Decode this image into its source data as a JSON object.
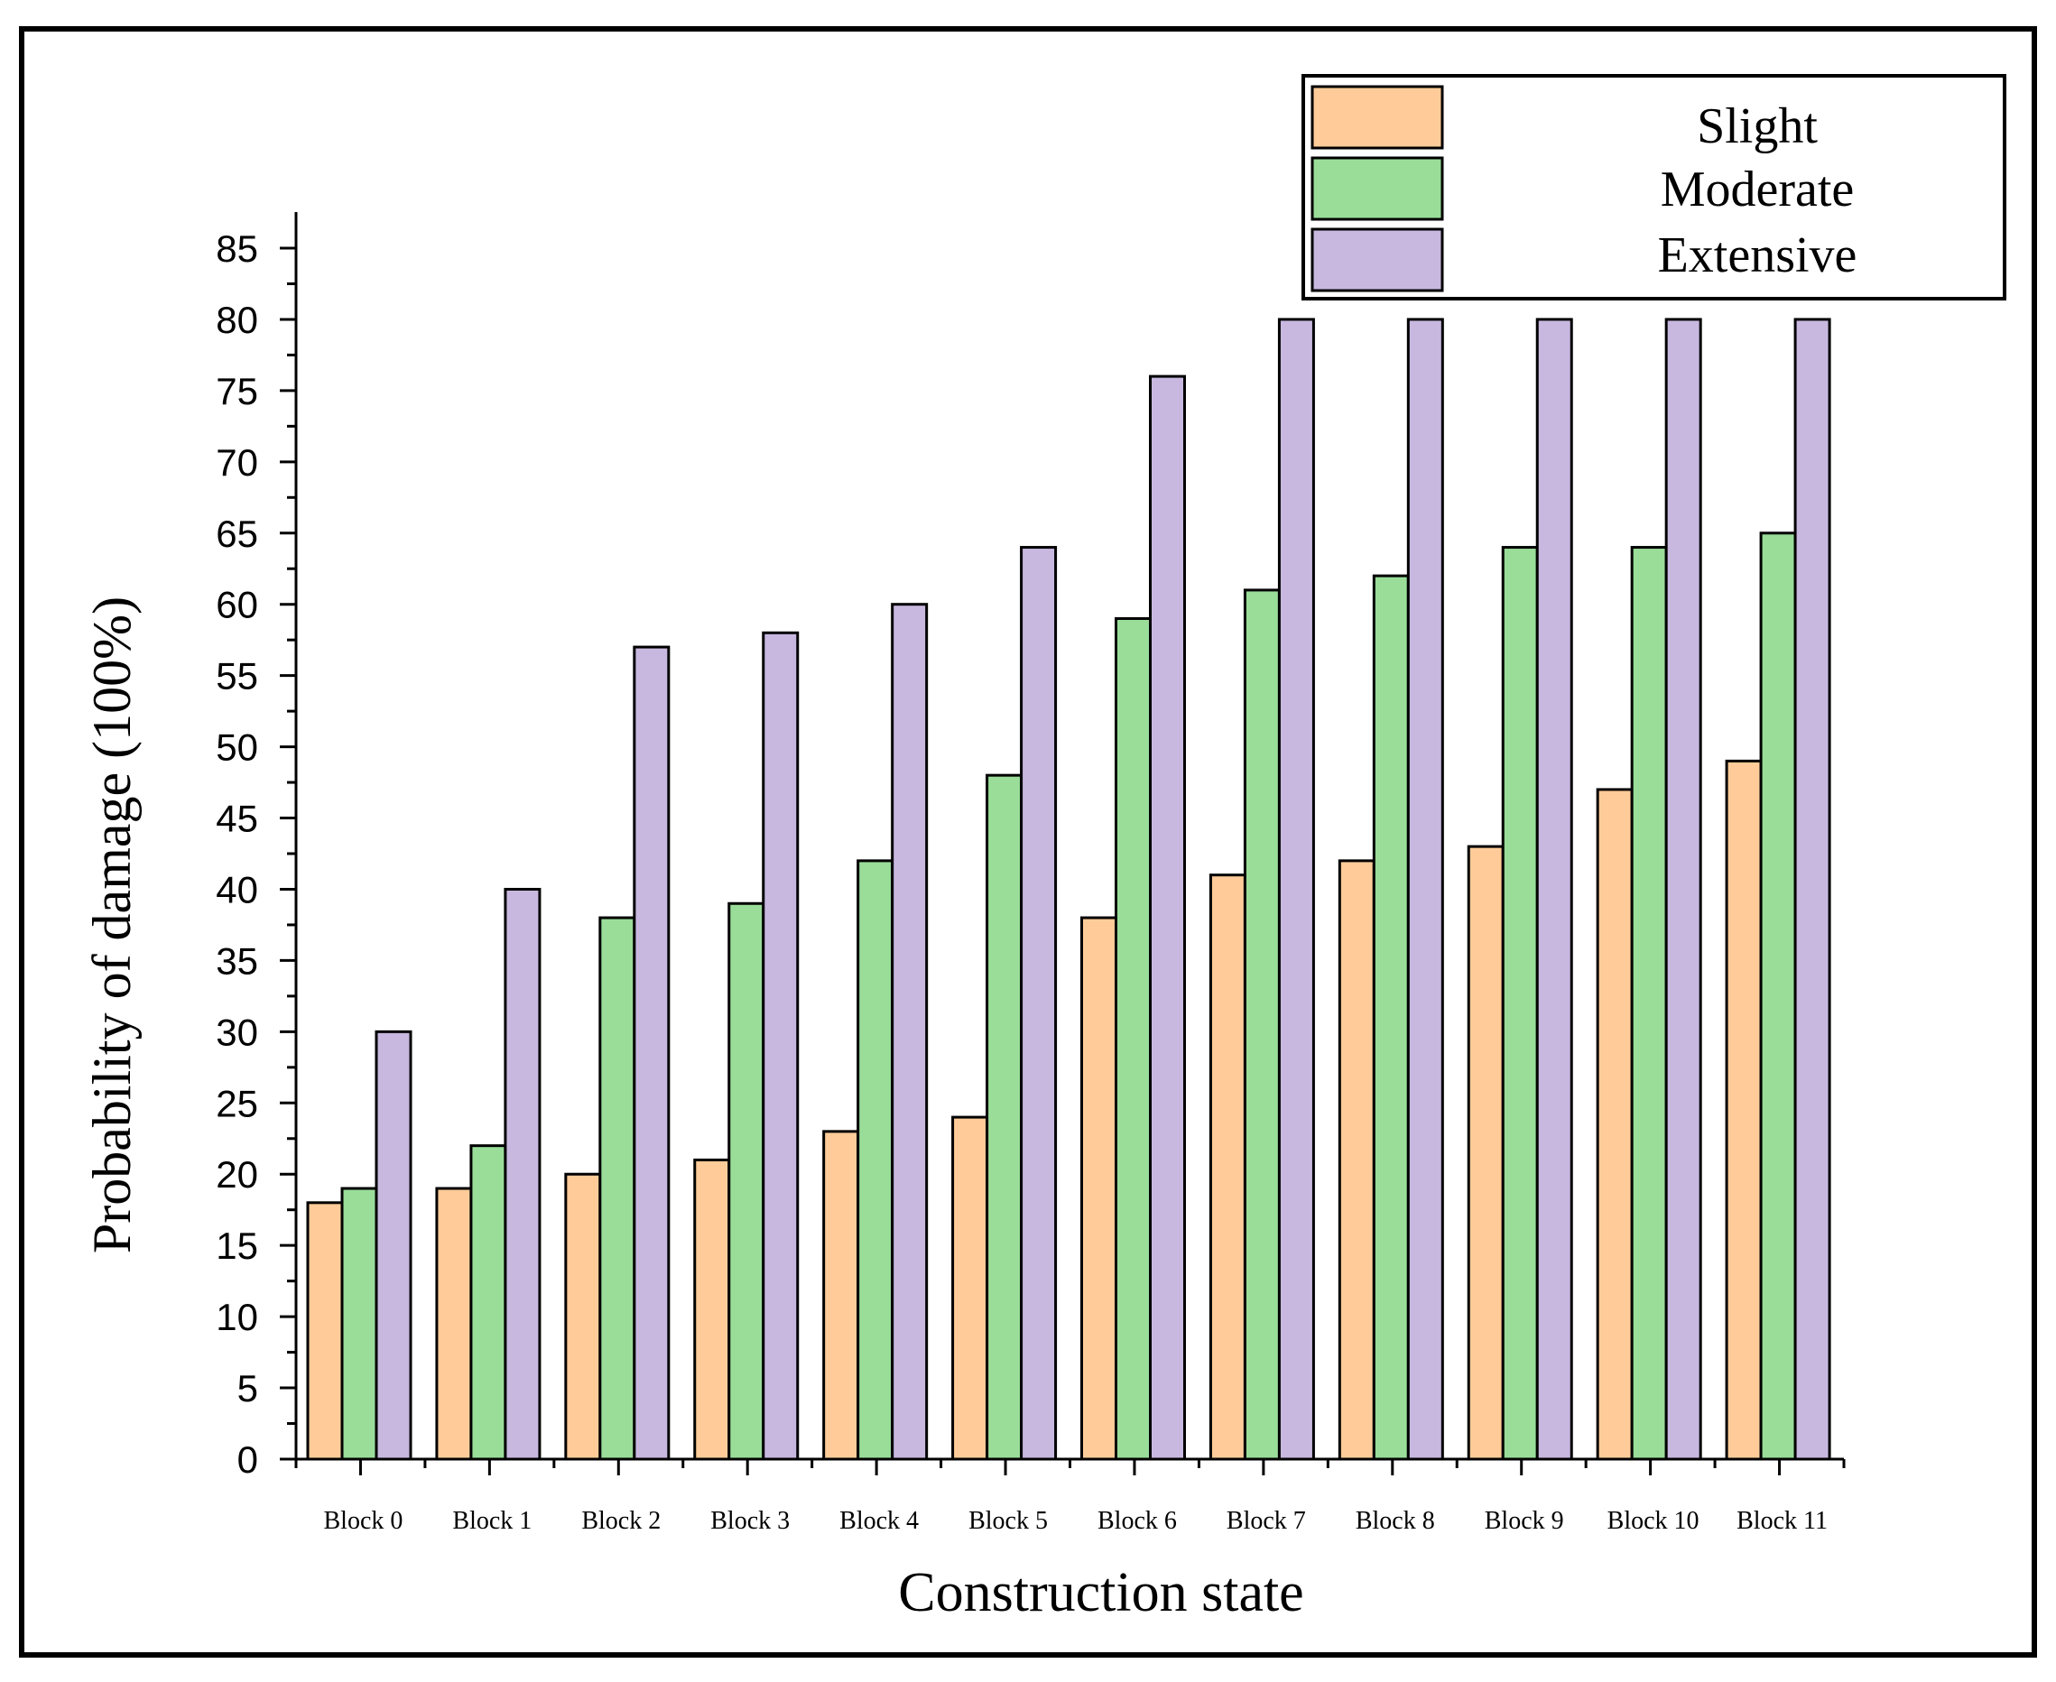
{
  "chart_data": {
    "type": "bar",
    "title": "",
    "xlabel": "Construction state",
    "ylabel": "Probability of damage (100%)",
    "ylim": [
      0,
      85
    ],
    "yticks": [
      0,
      5,
      10,
      15,
      20,
      25,
      30,
      35,
      40,
      45,
      50,
      55,
      60,
      65,
      70,
      75,
      80,
      85
    ],
    "grid": false,
    "legend_position": "top-right",
    "categories": [
      "Block 0",
      "Block 1",
      "Block 2",
      "Block 3",
      "Block 4",
      "Block 5",
      "Block 6",
      "Block 7",
      "Block 8",
      "Block 9",
      "Block 10",
      "Block 11"
    ],
    "series": [
      {
        "name": "Slight",
        "color": "#FFCC99",
        "values": [
          18,
          19,
          20,
          21,
          23,
          24,
          38,
          41,
          42,
          43,
          47,
          49
        ]
      },
      {
        "name": "Moderate",
        "color": "#99DD99",
        "values": [
          19,
          22,
          38,
          39,
          42,
          48,
          59,
          61,
          62,
          64,
          64,
          65
        ]
      },
      {
        "name": "Extensive",
        "color": "#C8B8E0",
        "values": [
          30,
          40,
          57,
          58,
          60,
          64,
          76,
          80,
          80,
          80,
          80,
          80
        ]
      }
    ]
  }
}
